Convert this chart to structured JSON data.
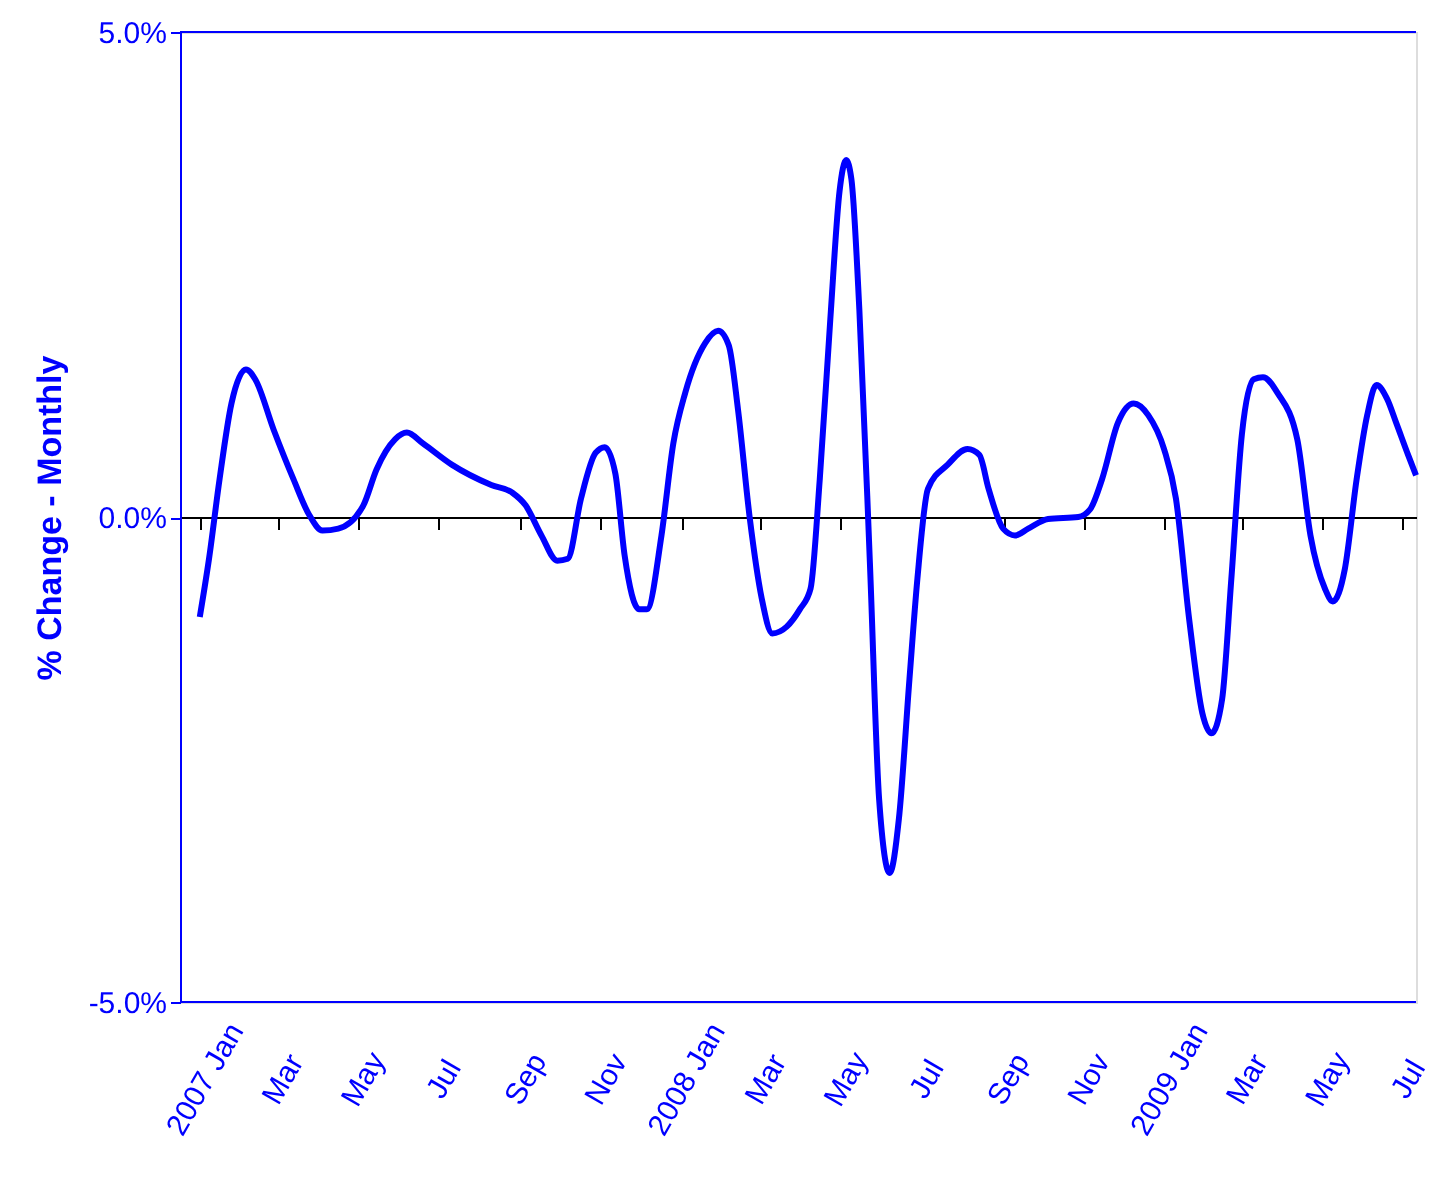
{
  "chart_data": {
    "type": "line",
    "ylabel": "% Change - Monthly",
    "x": [
      "2007-01-01",
      "2007-01-08",
      "2007-01-16",
      "2007-01-25",
      "2007-02-05",
      "2007-02-12",
      "2007-02-26",
      "2007-03-13",
      "2007-03-25",
      "2007-04-04",
      "2007-04-16",
      "2007-05-05",
      "2007-05-15",
      "2007-05-29",
      "2007-06-07",
      "2007-06-19",
      "2007-07-11",
      "2007-08-10",
      "2007-08-26",
      "2007-09-05",
      "2007-09-17",
      "2007-09-29",
      "2007-10-07",
      "2007-10-17",
      "2007-10-28",
      "2007-11-04",
      "2007-11-12",
      "2007-11-19",
      "2007-11-30",
      "2007-12-06",
      "2007-12-17",
      "2007-12-26",
      "2008-01-04",
      "2008-01-19",
      "2008-01-29",
      "2008-02-06",
      "2008-02-13",
      "2008-02-22",
      "2008-03-02",
      "2008-03-10",
      "2008-03-21",
      "2008-03-31",
      "2008-04-08",
      "2008-04-15",
      "2008-04-23",
      "2008-04-30",
      "2008-05-05",
      "2008-05-09",
      "2008-05-15",
      "2008-05-23",
      "2008-05-30",
      "2008-06-07",
      "2008-06-14",
      "2008-06-22",
      "2008-06-28",
      "2008-07-06",
      "2008-07-21",
      "2008-08-05",
      "2008-08-14",
      "2008-08-21",
      "2008-09-01",
      "2008-09-10",
      "2008-09-20",
      "2008-10-05",
      "2008-10-28",
      "2008-11-06",
      "2008-11-15",
      "2008-11-27",
      "2008-12-09",
      "2008-12-20",
      "2009-01-01",
      "2009-01-10",
      "2009-01-20",
      "2009-01-30",
      "2009-02-06",
      "2009-02-14",
      "2009-02-21",
      "2009-03-01",
      "2009-03-10",
      "2009-03-17",
      "2009-03-28",
      "2009-04-12",
      "2009-04-22",
      "2009-05-03",
      "2009-05-09",
      "2009-05-18",
      "2009-05-27",
      "2009-06-04",
      "2009-06-11",
      "2009-06-19",
      "2009-06-26",
      "2009-07-05",
      "2009-07-11"
    ],
    "series": [
      {
        "color": "#0000ff",
        "values": [
          -1.03,
          -0.43,
          0.39,
          1.17,
          1.52,
          1.42,
          0.9,
          0.39,
          0.02,
          -0.14,
          -0.12,
          0.12,
          0.49,
          0.8,
          0.87,
          0.76,
          0.54,
          0.33,
          0.25,
          0.12,
          -0.19,
          -0.45,
          -0.43,
          0.19,
          0.66,
          0.72,
          0.45,
          -0.39,
          -0.95,
          -0.95,
          -0.19,
          0.76,
          1.28,
          1.79,
          1.92,
          1.77,
          1.11,
          -0.02,
          -0.84,
          -1.2,
          -1.13,
          -0.95,
          -0.74,
          0.39,
          2.04,
          3.36,
          3.68,
          3.48,
          2.14,
          -0.47,
          -2.91,
          -3.67,
          -3.11,
          -1.67,
          -0.64,
          0.29,
          0.54,
          0.7,
          0.64,
          0.29,
          -0.12,
          -0.19,
          -0.12,
          -0.02,
          0,
          0.08,
          0.39,
          0.97,
          1.17,
          1.05,
          0.7,
          0.19,
          -1.05,
          -2.02,
          -2.23,
          -1.88,
          -0.64,
          0.85,
          1.42,
          1.44,
          1.28,
          0.8,
          -0.19,
          -0.74,
          -0.87,
          -0.54,
          0.39,
          1.05,
          1.36,
          1.22,
          0.97,
          0.64,
          0.43
        ]
      }
    ],
    "xlim": [
      "2006-12-17",
      "2009-07-11"
    ],
    "xticks": [
      {
        "value": "2007-01-01",
        "label": "2007 Jan"
      },
      {
        "value": "2007-03-01",
        "label": "Mar"
      },
      {
        "value": "2007-05-01",
        "label": "May"
      },
      {
        "value": "2007-07-01",
        "label": "Jul"
      },
      {
        "value": "2007-09-01",
        "label": "Sep"
      },
      {
        "value": "2007-11-01",
        "label": "Nov"
      },
      {
        "value": "2008-01-01",
        "label": "2008 Jan"
      },
      {
        "value": "2008-03-01",
        "label": "Mar"
      },
      {
        "value": "2008-05-01",
        "label": "May"
      },
      {
        "value": "2008-07-01",
        "label": "Jul"
      },
      {
        "value": "2008-09-01",
        "label": "Sep"
      },
      {
        "value": "2008-11-01",
        "label": "Nov"
      },
      {
        "value": "2009-01-01",
        "label": "2009 Jan"
      },
      {
        "value": "2009-03-01",
        "label": "Mar"
      },
      {
        "value": "2009-05-01",
        "label": "May"
      },
      {
        "value": "2009-07-01",
        "label": "Jul"
      }
    ],
    "ylim": [
      -5,
      5
    ],
    "yticks": [
      {
        "value": -5,
        "label": "-5.0%"
      },
      {
        "value": 0,
        "label": "0.0%"
      },
      {
        "value": 5,
        "label": "5.0%"
      }
    ],
    "line_style": "solid"
  }
}
